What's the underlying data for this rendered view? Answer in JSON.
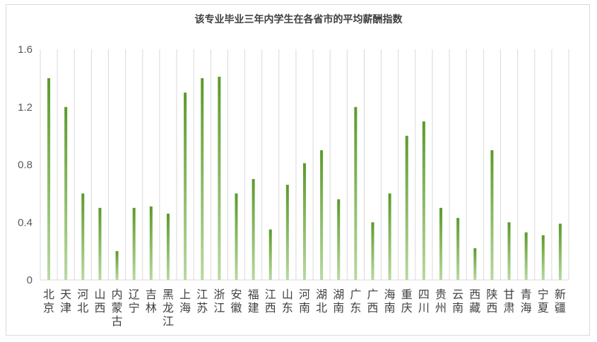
{
  "chart_data": {
    "type": "bar",
    "title": "该专业毕业三年内学生在各省市的平均薪酬指数",
    "xlabel": "",
    "ylabel": "",
    "ylim": [
      0,
      1.6
    ],
    "yticks": [
      "0",
      "0.4",
      "0.8",
      "1.2",
      "1.6"
    ],
    "grid": "vertical",
    "legend": "none",
    "bar_color_top": "#5a9a2a",
    "bar_color_bottom": "#b8d8a0",
    "grid_color": "#d9d9d9",
    "categories": [
      "北京",
      "天津",
      "河北",
      "山西",
      "内蒙古",
      "辽宁",
      "吉林",
      "黑龙江",
      "上海",
      "江苏",
      "浙江",
      "安徽",
      "福建",
      "江西",
      "山东",
      "河南",
      "湖北",
      "湖南",
      "广东",
      "广西",
      "海南",
      "重庆",
      "四川",
      "贵州",
      "云南",
      "西藏",
      "陕西",
      "甘肃",
      "青海",
      "宁夏",
      "新疆"
    ],
    "values": [
      1.4,
      1.2,
      0.6,
      0.5,
      0.2,
      0.5,
      0.51,
      0.46,
      1.3,
      1.4,
      1.41,
      0.6,
      0.7,
      0.35,
      0.66,
      0.81,
      0.9,
      0.56,
      1.2,
      0.4,
      0.6,
      1.0,
      1.1,
      0.5,
      0.43,
      0.22,
      0.9,
      0.4,
      0.33,
      0.31,
      0.39
    ]
  }
}
